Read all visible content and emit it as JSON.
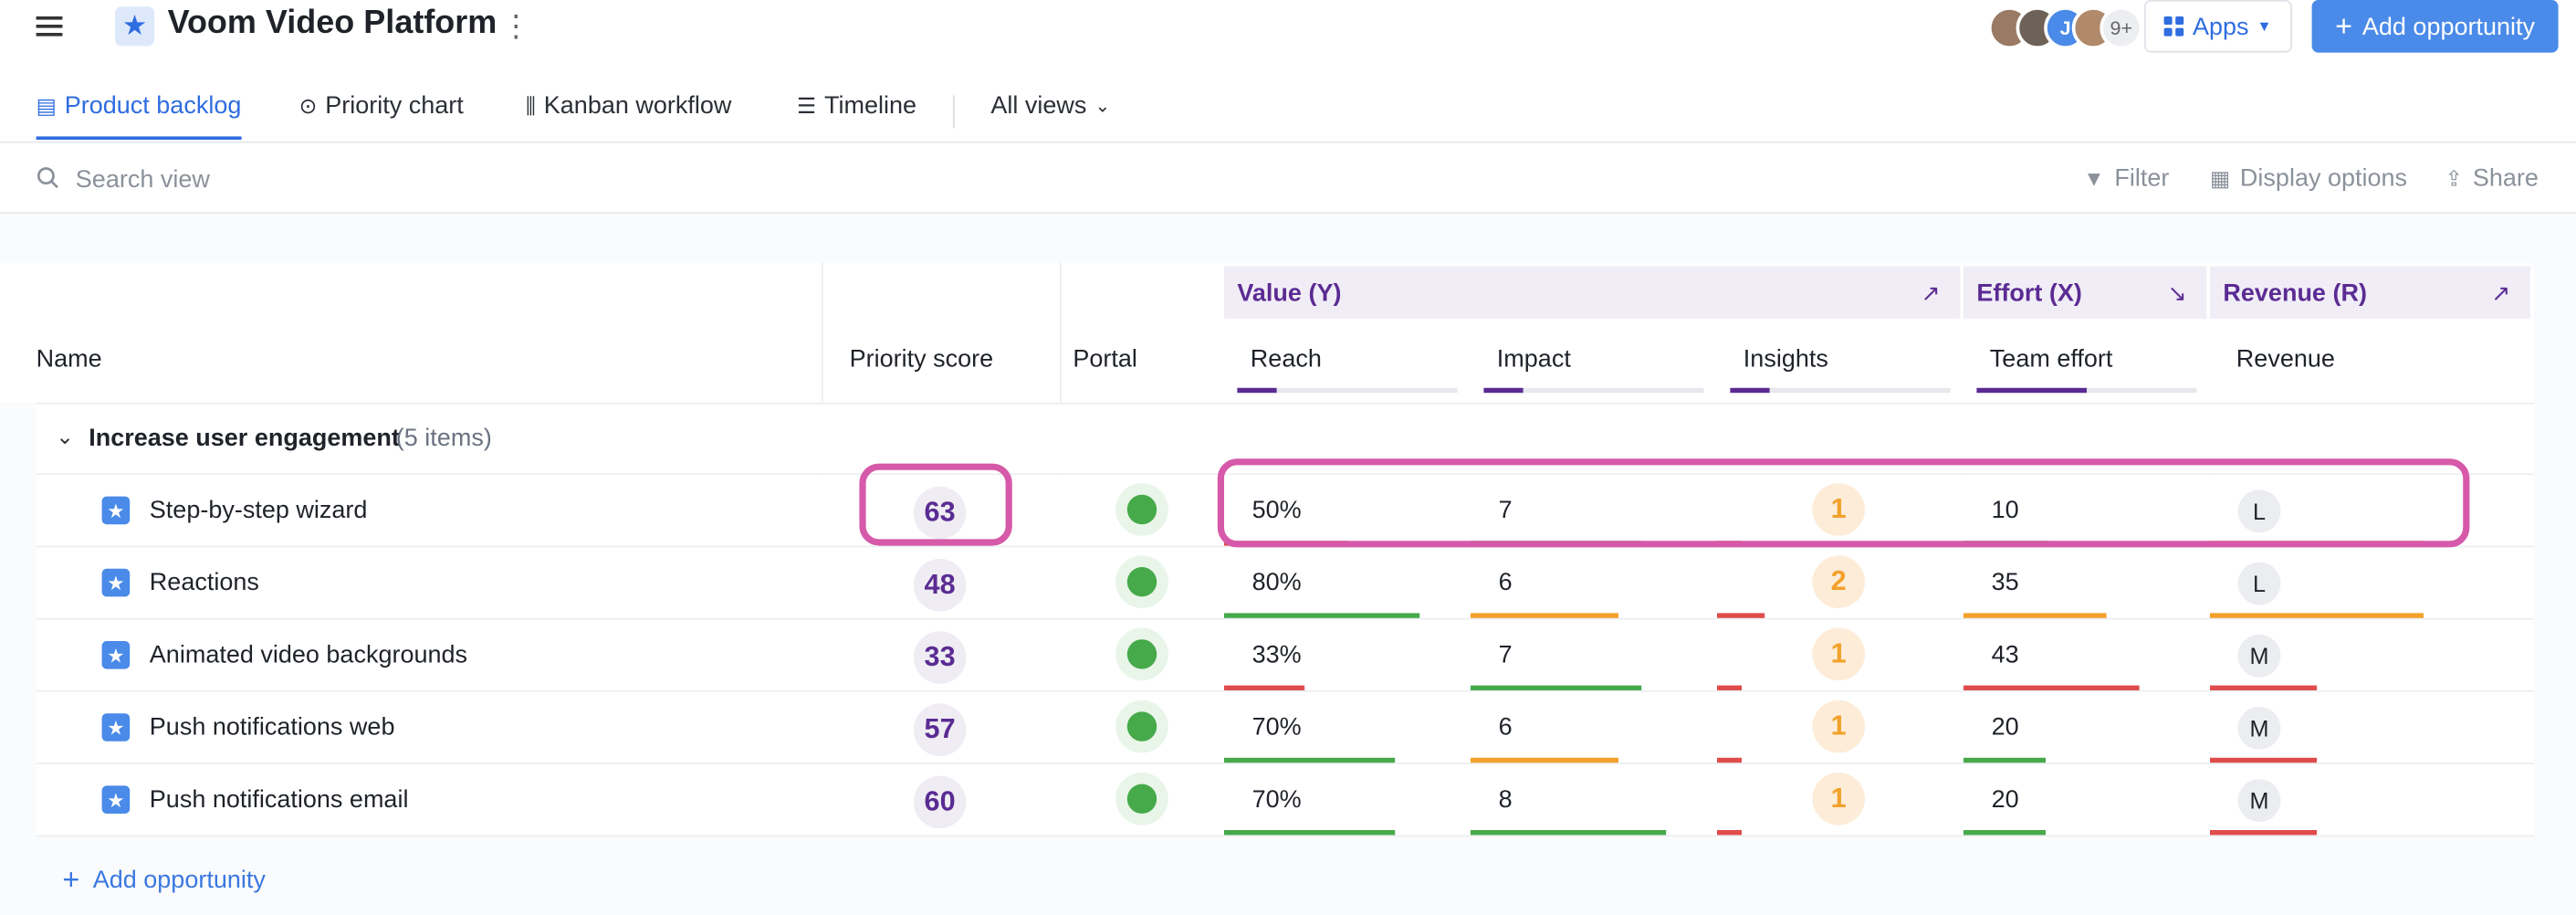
{
  "app": {
    "title": "Voom Video Platform"
  },
  "header": {
    "apps_label": "Apps",
    "add_label": "Add opportunity",
    "avatar_more": "9+"
  },
  "tabs": [
    {
      "label": "Product backlog",
      "active": true
    },
    {
      "label": "Priority chart"
    },
    {
      "label": "Kanban workflow"
    },
    {
      "label": "Timeline"
    },
    {
      "label": "All views"
    }
  ],
  "search": {
    "placeholder": "Search view"
  },
  "toolbar": {
    "filter": "Filter",
    "display": "Display options",
    "share": "Share"
  },
  "groups": {
    "value": "Value (Y)",
    "effort": "Effort (X)",
    "revenue": "Revenue (R)"
  },
  "columns": {
    "name": "Name",
    "score": "Priority score",
    "portal": "Portal",
    "reach": "Reach",
    "impact": "Impact",
    "insights": "Insights",
    "effort": "Team effort",
    "revenue": "Revenue"
  },
  "group_row": {
    "label": "Increase user engagement",
    "count": "(5 items)"
  },
  "rows": [
    {
      "name": "Step-by-step wizard",
      "score": "63",
      "reach": "50%",
      "impact": "7",
      "insights": "1",
      "effort": "10",
      "revenue": "L"
    },
    {
      "name": "Reactions",
      "score": "48",
      "reach": "80%",
      "impact": "6",
      "insights": "2",
      "effort": "35",
      "revenue": "L"
    },
    {
      "name": "Animated video backgrounds",
      "score": "33",
      "reach": "33%",
      "impact": "7",
      "insights": "1",
      "effort": "43",
      "revenue": "M"
    },
    {
      "name": "Push notifications web",
      "score": "57",
      "reach": "70%",
      "impact": "6",
      "insights": "1",
      "effort": "20",
      "revenue": "M"
    },
    {
      "name": "Push notifications email",
      "score": "60",
      "reach": "70%",
      "impact": "8",
      "insights": "1",
      "effort": "20",
      "revenue": "M"
    }
  ],
  "footer": {
    "add_label": "Add opportunity"
  },
  "colors": {
    "accent": "#2f6de0",
    "purple": "#5b2b93",
    "highlight": "#d65aa9",
    "green": "#46a94a",
    "orange": "#f2a12a",
    "red": "#e04b4b"
  }
}
